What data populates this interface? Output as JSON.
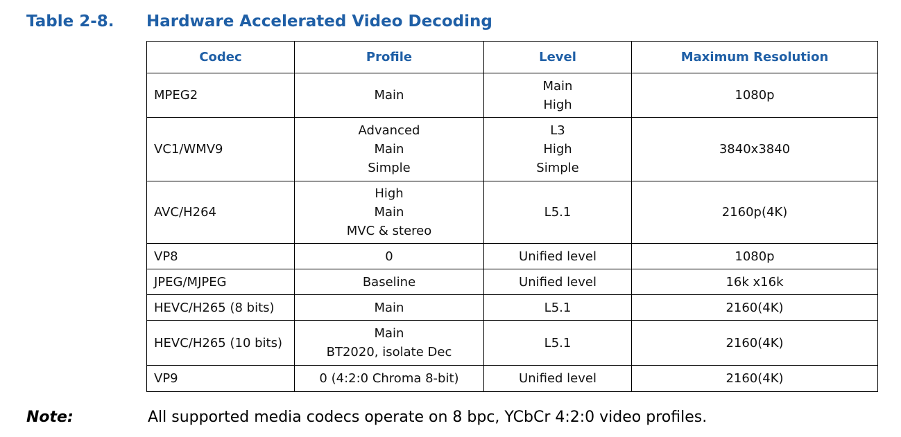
{
  "header": {
    "number": "Table 2-8.",
    "title": "Hardware Accelerated Video Decoding"
  },
  "table": {
    "columns": [
      "Codec",
      "Profile",
      "Level",
      "Maximum Resolution"
    ],
    "rows": [
      [
        [
          "MPEG2"
        ],
        [
          "Main"
        ],
        [
          "Main",
          "High"
        ],
        [
          "1080p"
        ]
      ],
      [
        [
          "VC1/WMV9"
        ],
        [
          "Advanced",
          "Main",
          "Simple"
        ],
        [
          "L3",
          "High",
          "Simple"
        ],
        [
          "3840x3840"
        ]
      ],
      [
        [
          "AVC/H264"
        ],
        [
          "High",
          "Main",
          "MVC & stereo"
        ],
        [
          "L5.1"
        ],
        [
          "2160p(4K)"
        ]
      ],
      [
        [
          "VP8"
        ],
        [
          "0"
        ],
        [
          "Unified level"
        ],
        [
          "1080p"
        ]
      ],
      [
        [
          "JPEG/MJPEG"
        ],
        [
          "Baseline"
        ],
        [
          "Unified level"
        ],
        [
          "16k x16k"
        ]
      ],
      [
        [
          "HEVC/H265 (8 bits)"
        ],
        [
          "Main"
        ],
        [
          "L5.1"
        ],
        [
          "2160(4K)"
        ]
      ],
      [
        [
          "HEVC/H265 (10 bits)"
        ],
        [
          "Main",
          "BT2020, isolate Dec"
        ],
        [
          "L5.1"
        ],
        [
          "2160(4K)"
        ]
      ],
      [
        [
          "VP9"
        ],
        [
          "0 (4:2:0 Chroma 8-bit)"
        ],
        [
          "Unified level"
        ],
        [
          "2160(4K)"
        ]
      ]
    ]
  },
  "note": {
    "label": "Note:",
    "text": "All supported media codecs operate on 8 bpc, YCbCr 4:2:0 video profiles."
  }
}
